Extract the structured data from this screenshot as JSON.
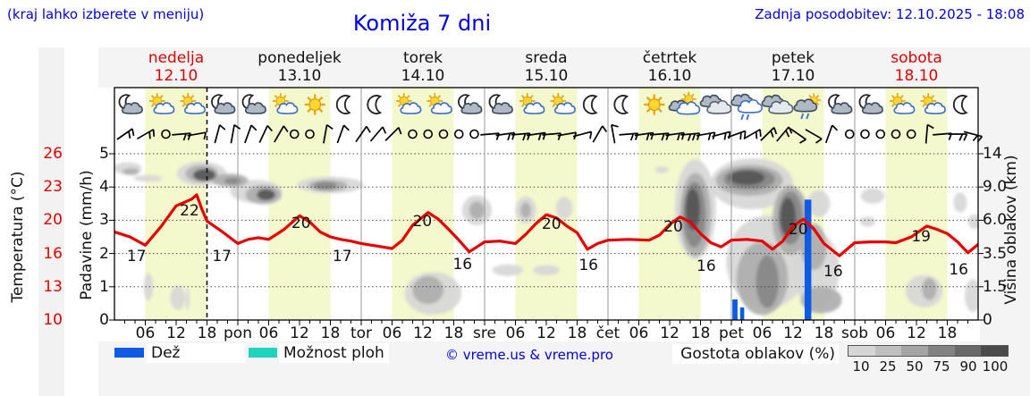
{
  "header": {
    "hint": "(kraj lahko izberete v meniju)",
    "title": "Komiža 7 dni",
    "updated": "Zadnja posodobitev: 12.10.2025 - 18:08"
  },
  "days": [
    {
      "name": "nedelja",
      "date": "12.10",
      "red": true
    },
    {
      "name": "ponedeljek",
      "date": "13.10",
      "red": false
    },
    {
      "name": "torek",
      "date": "14.10",
      "red": false
    },
    {
      "name": "sreda",
      "date": "15.10",
      "red": false
    },
    {
      "name": "četrtek",
      "date": "16.10",
      "red": false
    },
    {
      "name": "petek",
      "date": "17.10",
      "red": false
    },
    {
      "name": "sobota",
      "date": "18.10",
      "red": true
    }
  ],
  "axes": {
    "temp_label": "Temperatura (°C)",
    "temp_ticks": [
      "26",
      "23",
      "20",
      "16",
      "13",
      "10"
    ],
    "precip_label": "Padavine (mm/h)",
    "precip_ticks": [
      "5",
      "4",
      "3",
      "2",
      "1",
      "0"
    ],
    "cloud_label": "Višina oblakov (km)",
    "cloud_ticks": [
      "14",
      "9.0",
      "6.0",
      "3.5",
      "1.5",
      "0"
    ],
    "time_ticks": [
      "06",
      "12",
      "18",
      "pon",
      "06",
      "12",
      "18",
      "tor",
      "06",
      "12",
      "18",
      "sre",
      "06",
      "12",
      "18",
      "čet",
      "06",
      "12",
      "18",
      "pet",
      "06",
      "12",
      "18",
      "sob",
      "06",
      "12",
      "18"
    ]
  },
  "legend": {
    "rain_label": "Dež",
    "showers_label": "Možnost ploh",
    "credit": "© vreme.us & vreme.pro",
    "density_label": "Gostota oblakov (%)",
    "density_ticks": [
      "10",
      "25",
      "50",
      "75",
      "90",
      "100"
    ],
    "rain_color": "#0f5be4",
    "showers_color": "#1fd4bf",
    "density_colors": [
      "#d6d6d6",
      "#bfbfbf",
      "#a5a5a5",
      "#828282",
      "#696969",
      "#4b4b4b"
    ]
  },
  "chart_data": {
    "type": "meteogram-line",
    "title": "Komiža 7 dni",
    "x_unit": "hours from 12.10 00:00 (7 days)",
    "x_range_hours": [
      0,
      168
    ],
    "current_time_hour": 18,
    "day_band_hours": [
      6,
      18
    ],
    "temp_axis_anchors": [
      [
        10,
        305
      ],
      [
        13,
        267.8
      ],
      [
        16,
        230.6
      ],
      [
        20,
        193.4
      ],
      [
        23,
        156.2
      ],
      [
        26,
        119
      ]
    ],
    "cloud_km_axis_anchors": [
      [
        0,
        305
      ],
      [
        1.5,
        267.8
      ],
      [
        3.5,
        230.6
      ],
      [
        6,
        193.4
      ],
      [
        9,
        156.2
      ],
      [
        14,
        119
      ]
    ],
    "precip_scale_mmh": [
      0,
      5
    ],
    "temperature_c": [
      [
        0,
        18.6
      ],
      [
        3,
        18.0
      ],
      [
        6,
        17.0
      ],
      [
        9,
        19.2
      ],
      [
        12,
        21.3
      ],
      [
        15,
        21.9
      ],
      [
        16,
        22.3
      ],
      [
        17,
        21.0
      ],
      [
        18,
        19.9
      ],
      [
        21,
        18.6
      ],
      [
        24,
        17.2
      ],
      [
        26,
        17.7
      ],
      [
        28,
        17.9
      ],
      [
        30,
        17.7
      ],
      [
        33,
        18.9
      ],
      [
        36,
        20.4
      ],
      [
        38,
        19.8
      ],
      [
        40,
        18.6
      ],
      [
        42,
        18.0
      ],
      [
        44,
        17.7
      ],
      [
        46,
        17.5
      ],
      [
        48,
        17.2
      ],
      [
        51,
        16.9
      ],
      [
        54,
        16.6
      ],
      [
        56,
        17.6
      ],
      [
        58,
        19.4
      ],
      [
        61,
        20.7
      ],
      [
        63,
        20.1
      ],
      [
        65,
        18.9
      ],
      [
        67,
        17.6
      ],
      [
        69,
        16.2
      ],
      [
        71,
        17.0
      ],
      [
        72,
        17.4
      ],
      [
        75,
        17.5
      ],
      [
        78,
        17.2
      ],
      [
        80,
        18.3
      ],
      [
        82,
        19.6
      ],
      [
        84,
        20.5
      ],
      [
        86,
        20.2
      ],
      [
        88,
        19.3
      ],
      [
        90,
        18.5
      ],
      [
        92,
        16.5
      ],
      [
        94,
        17.2
      ],
      [
        96,
        17.6
      ],
      [
        100,
        17.7
      ],
      [
        104,
        17.6
      ],
      [
        106,
        18.2
      ],
      [
        108,
        19.5
      ],
      [
        110,
        20.3
      ],
      [
        112,
        19.8
      ],
      [
        114,
        18.4
      ],
      [
        116,
        17.3
      ],
      [
        118,
        16.8
      ],
      [
        120,
        17.6
      ],
      [
        123,
        17.7
      ],
      [
        126,
        17.5
      ],
      [
        128,
        16.5
      ],
      [
        130,
        17.5
      ],
      [
        132,
        19.3
      ],
      [
        134,
        20.1
      ],
      [
        136,
        19.0
      ],
      [
        138,
        17.2
      ],
      [
        141,
        15.8
      ],
      [
        144,
        17.3
      ],
      [
        147,
        17.4
      ],
      [
        150,
        17.4
      ],
      [
        152,
        17.3
      ],
      [
        155,
        18.0
      ],
      [
        158,
        19.3
      ],
      [
        160,
        18.9
      ],
      [
        162,
        18.4
      ],
      [
        164,
        17.4
      ],
      [
        166,
        16.1
      ],
      [
        168,
        17.1
      ]
    ],
    "temp_labels": [
      [
        4.3,
        "17",
        239
      ],
      [
        14.6,
        "22",
        188
      ],
      [
        20.9,
        "17",
        239
      ],
      [
        36.3,
        "20",
        202
      ],
      [
        44.3,
        "17",
        239
      ],
      [
        59.9,
        "20",
        200
      ],
      [
        67.7,
        "16",
        248
      ],
      [
        85,
        "20",
        203
      ],
      [
        92.2,
        "16",
        249
      ],
      [
        108.7,
        "20",
        206
      ],
      [
        115.1,
        "16",
        250
      ],
      [
        133,
        "20",
        209
      ],
      [
        139.8,
        "16",
        256
      ],
      [
        156.9,
        "19",
        217
      ],
      [
        164.2,
        "16",
        254
      ]
    ],
    "rain_bars_mmh": [
      [
        120.7,
        0.62,
        1.0
      ],
      [
        122.1,
        0.38,
        0.8
      ],
      [
        134.9,
        3.62,
        1.3
      ]
    ],
    "clouds": [
      [
        2.5,
        11.8,
        2.8,
        0.9,
        1
      ],
      [
        3.2,
        11.3,
        1.6,
        0.5,
        2
      ],
      [
        6.5,
        10.3,
        2.8,
        0.5,
        1
      ],
      [
        17,
        11,
        4.8,
        1.8,
        1
      ],
      [
        17,
        11,
        3.2,
        1.3,
        2
      ],
      [
        17.5,
        10.8,
        2.2,
        0.9,
        4
      ],
      [
        22.5,
        10,
        3.5,
        1.0,
        2
      ],
      [
        23,
        9.9,
        1.6,
        0.5,
        3
      ],
      [
        27.5,
        8.6,
        5,
        1.2,
        1
      ],
      [
        29,
        8.3,
        3.5,
        0.9,
        2
      ],
      [
        29.5,
        8.3,
        1.8,
        0.5,
        4
      ],
      [
        42,
        9.3,
        6.5,
        1.0,
        1
      ],
      [
        41.5,
        9.2,
        3.8,
        0.7,
        2
      ],
      [
        41,
        9.2,
        2.2,
        0.5,
        3
      ],
      [
        6.6,
        1.5,
        0.9,
        0.7,
        1
      ],
      [
        12.3,
        1.0,
        1.4,
        0.55,
        1
      ],
      [
        14.2,
        0.95,
        0.4,
        0.5,
        1
      ],
      [
        62,
        1.2,
        5.5,
        1.05,
        1
      ],
      [
        61,
        1.35,
        3,
        0.7,
        2
      ],
      [
        76.5,
        2.5,
        3,
        0.35,
        1
      ],
      [
        84,
        2.5,
        2.6,
        0.3,
        1
      ],
      [
        70.5,
        6.9,
        2.9,
        1.3,
        1
      ],
      [
        70.5,
        6.9,
        1.5,
        0.8,
        2
      ],
      [
        80,
        6.9,
        2,
        1.2,
        1
      ],
      [
        80,
        6.9,
        1,
        0.7,
        2
      ],
      [
        87.5,
        7.1,
        1.6,
        1.0,
        1
      ],
      [
        106.5,
        11.6,
        1.3,
        0.5,
        1
      ],
      [
        113,
        7,
        4,
        4.5,
        1
      ],
      [
        124,
        9.5,
        8,
        3,
        1
      ],
      [
        127,
        3,
        8,
        2.8,
        1
      ],
      [
        136.5,
        2.5,
        4.5,
        2.2,
        1
      ],
      [
        137,
        7.5,
        2.2,
        1.2,
        1
      ],
      [
        113,
        6.5,
        3,
        3.6,
        2
      ],
      [
        123.5,
        10,
        6.5,
        2,
        2
      ],
      [
        126,
        2,
        5,
        2,
        2
      ],
      [
        131.5,
        6,
        3.5,
        2.8,
        2
      ],
      [
        136,
        4,
        2.5,
        1.6,
        2
      ],
      [
        137.5,
        0.9,
        4,
        0.6,
        2
      ],
      [
        112.8,
        6.5,
        2.2,
        2.8,
        3
      ],
      [
        123.5,
        10.2,
        5,
        1.5,
        3
      ],
      [
        131.5,
        6.2,
        2.4,
        2.2,
        3
      ],
      [
        127,
        1.8,
        2.2,
        1.4,
        3
      ],
      [
        112.5,
        7,
        1.4,
        1.8,
        4
      ],
      [
        123,
        10.4,
        3.5,
        1.1,
        4
      ],
      [
        131,
        6.3,
        1.5,
        1.6,
        4
      ],
      [
        147.5,
        8.2,
        2.3,
        0.7,
        1
      ],
      [
        146.5,
        5.9,
        1.5,
        0.4,
        1
      ],
      [
        157.5,
        1.3,
        3.6,
        0.8,
        1
      ],
      [
        158.5,
        1.4,
        1.4,
        0.55,
        2
      ],
      [
        164.5,
        7.6,
        1.3,
        0.9,
        1
      ],
      [
        167.3,
        5.9,
        1.3,
        0.6,
        1
      ],
      [
        167,
        1.1,
        1.6,
        0.8,
        1
      ]
    ],
    "cloud_shade_colors": {
      "1": "#d7d7d7",
      "2": "#aeaeae",
      "3": "#878787",
      "4": "#555555"
    },
    "icons": [
      "moon-cloud",
      "sun-cloud",
      "sun-cloud",
      "moon-cloud",
      "moon-cloud",
      "sun-cloud",
      "sun",
      "moon",
      "moon",
      "sun-cloud",
      "sun-cloud",
      "moon-cloud",
      "moon-cloud",
      "sun-cloud",
      "sun-cloud",
      "moon",
      "moon",
      "sun",
      "sun-clouds",
      "clouds",
      "clouds-rain",
      "clouds",
      "sun-cloud-rain",
      "moon-cloud",
      "moon-cloud",
      "sun-cloud",
      "sun-cloud",
      "moon"
    ],
    "winds": [
      [
        2,
        "b",
        35,
        2
      ],
      [
        6,
        "b",
        30,
        2
      ],
      [
        10,
        "c",
        0,
        0
      ],
      [
        13,
        "b",
        5,
        2
      ],
      [
        16,
        "b",
        10,
        1
      ],
      [
        20,
        "b",
        75,
        1
      ],
      [
        23,
        "b",
        80,
        1
      ],
      [
        26,
        "b",
        70,
        1
      ],
      [
        29,
        "b",
        65,
        1
      ],
      [
        32,
        "b",
        60,
        1
      ],
      [
        35,
        "c",
        0,
        0
      ],
      [
        38,
        "c",
        0,
        0
      ],
      [
        41,
        "b",
        80,
        1
      ],
      [
        44,
        "b",
        70,
        1
      ],
      [
        48,
        "b",
        55,
        1
      ],
      [
        51,
        "b",
        50,
        1
      ],
      [
        54,
        "b",
        45,
        1
      ],
      [
        58,
        "c",
        0,
        0
      ],
      [
        61,
        "c",
        0,
        0
      ],
      [
        64,
        "c",
        0,
        0
      ],
      [
        67,
        "c",
        0,
        0
      ],
      [
        70,
        "c",
        0,
        0
      ],
      [
        73,
        "b",
        5,
        1
      ],
      [
        76,
        "b",
        8,
        2
      ],
      [
        79,
        "b",
        5,
        2
      ],
      [
        82,
        "b",
        8,
        2
      ],
      [
        85,
        "b",
        5,
        1
      ],
      [
        88,
        "b",
        10,
        1
      ],
      [
        91,
        "b",
        15,
        1
      ],
      [
        94,
        "b",
        60,
        1
      ],
      [
        97,
        "b",
        100,
        1
      ],
      [
        100,
        "b",
        5,
        2
      ],
      [
        103,
        "b",
        8,
        2
      ],
      [
        106,
        "b",
        5,
        2
      ],
      [
        109,
        "b",
        8,
        2
      ],
      [
        112,
        "b",
        5,
        3
      ],
      [
        115,
        "b",
        10,
        2
      ],
      [
        118,
        "b",
        15,
        2
      ],
      [
        121,
        "b",
        20,
        2
      ],
      [
        124,
        "b",
        30,
        2
      ],
      [
        127,
        "b",
        45,
        2
      ],
      [
        130,
        "b",
        50,
        2
      ],
      [
        133,
        "b",
        -35,
        1
      ],
      [
        136,
        "b",
        -30,
        1
      ],
      [
        139,
        "b",
        70,
        1
      ],
      [
        143,
        "c",
        0,
        0
      ],
      [
        146,
        "c",
        0,
        0
      ],
      [
        149,
        "c",
        0,
        0
      ],
      [
        152,
        "c",
        0,
        0
      ],
      [
        155,
        "c",
        0,
        0
      ],
      [
        158,
        "b",
        85,
        1
      ],
      [
        161,
        "b",
        5,
        1
      ],
      [
        164,
        "b",
        0,
        2
      ],
      [
        167,
        "b",
        -15,
        2
      ]
    ],
    "band_color": "#f4f8cd",
    "line_color": "#e60000"
  }
}
